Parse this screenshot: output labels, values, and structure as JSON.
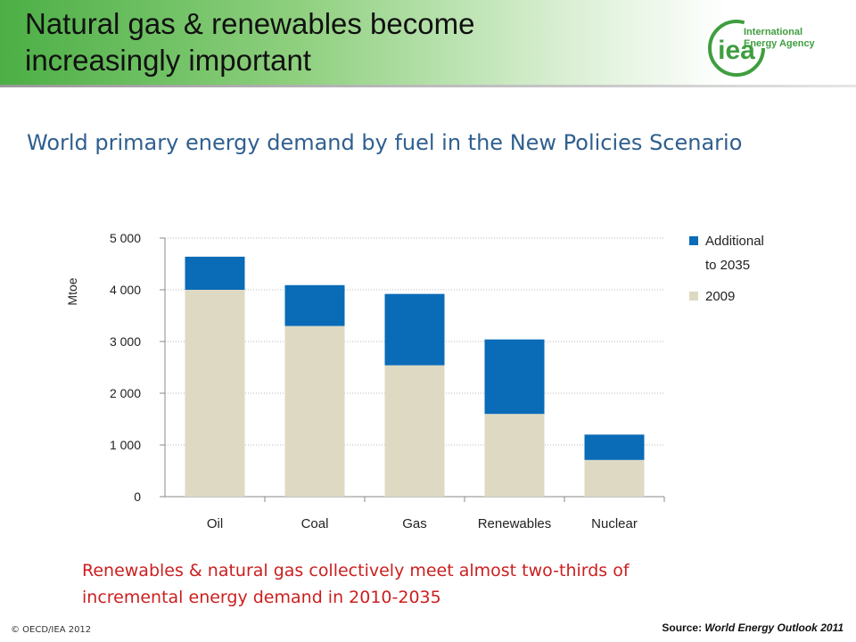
{
  "slide": {
    "title": "Natural gas & renewables become\nincreasingly important",
    "subtitle": "World primary energy demand by fuel in the New Policies Scenario",
    "note": "Renewables & natural gas collectively meet almost two-thirds of incremental energy demand in 2010-2035",
    "copyright": "© OECD/IEA 2012",
    "source_label": "Source: ",
    "source_title": "World Energy Outlook 2011"
  },
  "logo": {
    "mark_text": "iea",
    "wordmark": "International Energy Agency",
    "color": "#3f9e3f"
  },
  "chart_data": {
    "type": "bar",
    "stacked": true,
    "ylabel": "Mtoe",
    "ylim": [
      0,
      5000
    ],
    "yticks": [
      0,
      1000,
      2000,
      3000,
      4000,
      5000
    ],
    "ytick_labels": [
      "0",
      "1 000",
      "2 000",
      "3 000",
      "4 000",
      "5 000"
    ],
    "categories": [
      "Oil",
      "Coal",
      "Gas",
      "Renewables",
      "Nuclear"
    ],
    "series": [
      {
        "name": "2009",
        "values": [
          4000,
          3300,
          2540,
          1600,
          710
        ],
        "color": "#ddd9c3"
      },
      {
        "name": "Additional to 2035",
        "values": [
          640,
          790,
          1380,
          1440,
          490
        ],
        "color": "#0a6bb7"
      }
    ],
    "legend": {
      "position": "right",
      "entries": [
        {
          "label_lines": [
            "Additional",
            "to 2035"
          ],
          "color": "#0a6bb7"
        },
        {
          "label_lines": [
            "2009"
          ],
          "color": "#ddd9c3"
        }
      ]
    },
    "grid": true
  }
}
